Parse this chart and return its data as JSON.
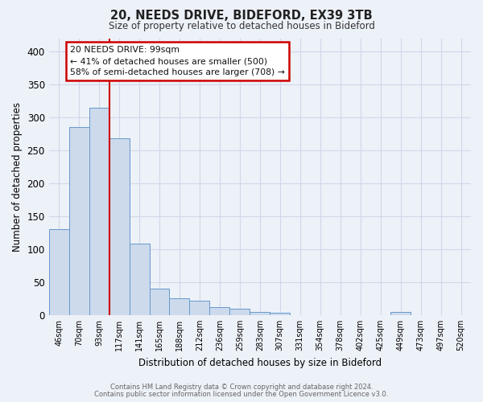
{
  "title": "20, NEEDS DRIVE, BIDEFORD, EX39 3TB",
  "subtitle": "Size of property relative to detached houses in Bideford",
  "xlabel": "Distribution of detached houses by size in Bideford",
  "ylabel": "Number of detached properties",
  "bar_labels": [
    "46sqm",
    "70sqm",
    "93sqm",
    "117sqm",
    "141sqm",
    "165sqm",
    "188sqm",
    "212sqm",
    "236sqm",
    "259sqm",
    "283sqm",
    "307sqm",
    "331sqm",
    "354sqm",
    "378sqm",
    "402sqm",
    "425sqm",
    "449sqm",
    "473sqm",
    "497sqm",
    "520sqm"
  ],
  "bar_values": [
    130,
    285,
    315,
    268,
    108,
    40,
    25,
    22,
    12,
    10,
    5,
    4,
    0,
    0,
    0,
    0,
    0,
    5,
    0,
    0,
    0
  ],
  "bar_color": "#ccdaec",
  "bar_edge_color": "#6699cc",
  "red_line_x": 2.5,
  "ylim": [
    0,
    420
  ],
  "yticks": [
    0,
    50,
    100,
    150,
    200,
    250,
    300,
    350,
    400
  ],
  "annotation_title": "20 NEEDS DRIVE: 99sqm",
  "annotation_line1": "← 41% of detached houses are smaller (500)",
  "annotation_line2": "58% of semi-detached houses are larger (708) →",
  "annotation_box_color": "#ffffff",
  "annotation_box_edge": "#cc0000",
  "grid_color": "#d0d8e8",
  "bg_color": "#edf1f8",
  "footer_line1": "Contains HM Land Registry data © Crown copyright and database right 2024.",
  "footer_line2": "Contains public sector information licensed under the Open Government Licence v3.0."
}
